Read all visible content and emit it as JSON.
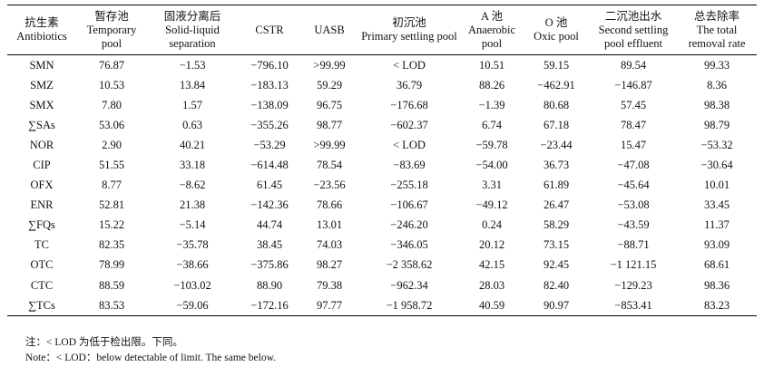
{
  "columns": [
    {
      "cn": "抗生素",
      "en": "Antibiotics"
    },
    {
      "cn": "暂存池",
      "en": "Temporary pool"
    },
    {
      "cn": "固液分离后",
      "en": "Solid-liquid separation"
    },
    {
      "cn": "",
      "en": "CSTR"
    },
    {
      "cn": "",
      "en": "UASB"
    },
    {
      "cn": "初沉池",
      "en": "Primary settling pool"
    },
    {
      "cn": "A 池",
      "en": "Anaerobic pool"
    },
    {
      "cn": "O 池",
      "en": "Oxic pool"
    },
    {
      "cn": "二沉池出水",
      "en": "Second settling pool effluent"
    },
    {
      "cn": "总去除率",
      "en": "The total removal rate"
    }
  ],
  "rows": [
    [
      "SMN",
      "76.87",
      "−1.53",
      "−796.10",
      ">99.99",
      "< LOD",
      "10.51",
      "59.15",
      "89.54",
      "99.33"
    ],
    [
      "SMZ",
      "10.53",
      "13.84",
      "−183.13",
      "59.29",
      "36.79",
      "88.26",
      "−462.91",
      "−146.87",
      "8.36"
    ],
    [
      "SMX",
      "7.80",
      "1.57",
      "−138.09",
      "96.75",
      "−176.68",
      "−1.39",
      "80.68",
      "57.45",
      "98.38"
    ],
    [
      "∑SAs",
      "53.06",
      "0.63",
      "−355.26",
      "98.77",
      "−602.37",
      "6.74",
      "67.18",
      "78.47",
      "98.79"
    ],
    [
      "NOR",
      "2.90",
      "40.21",
      "−53.29",
      ">99.99",
      "< LOD",
      "−59.78",
      "−23.44",
      "15.47",
      "−53.32"
    ],
    [
      "CIP",
      "51.55",
      "33.18",
      "−614.48",
      "78.54",
      "−83.69",
      "−54.00",
      "36.73",
      "−47.08",
      "−30.64"
    ],
    [
      "OFX",
      "8.77",
      "−8.62",
      "61.45",
      "−23.56",
      "−255.18",
      "3.31",
      "61.89",
      "−45.64",
      "10.01"
    ],
    [
      "ENR",
      "52.81",
      "21.38",
      "−142.36",
      "78.66",
      "−106.67",
      "−49.12",
      "26.47",
      "−53.08",
      "33.45"
    ],
    [
      "∑FQs",
      "15.22",
      "−5.14",
      "44.74",
      "13.01",
      "−246.20",
      "0.24",
      "58.29",
      "−43.59",
      "11.37"
    ],
    [
      "TC",
      "82.35",
      "−35.78",
      "38.45",
      "74.03",
      "−346.05",
      "20.12",
      "73.15",
      "−88.71",
      "93.09"
    ],
    [
      "OTC",
      "78.99",
      "−38.66",
      "−375.86",
      "98.27",
      "−2 358.62",
      "42.15",
      "92.45",
      "−1 121.15",
      "68.61"
    ],
    [
      "CTC",
      "88.59",
      "−103.02",
      "88.90",
      "79.38",
      "−962.34",
      "28.03",
      "82.40",
      "−129.23",
      "98.36"
    ],
    [
      "∑TCs",
      "83.53",
      "−59.06",
      "−172.16",
      "97.77",
      "−1 958.72",
      "40.59",
      "90.97",
      "−853.41",
      "83.23"
    ]
  ],
  "notes": {
    "cn": "注：< LOD 为低于检出限。下同。",
    "en": "Note：< LOD：below detectable of limit. The same below."
  }
}
